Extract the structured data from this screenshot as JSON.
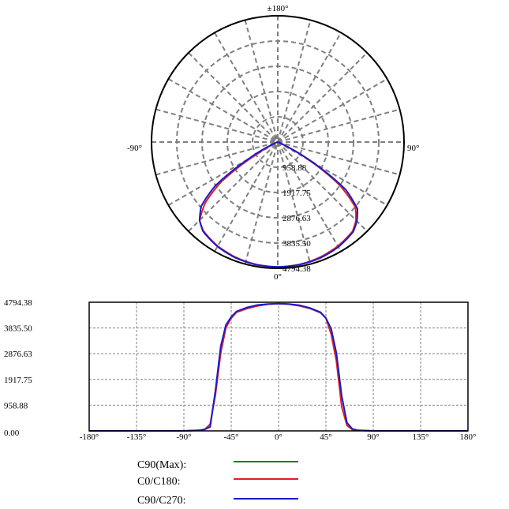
{
  "colors": {
    "c90_max": "#1a7f1a",
    "c0_c180": "#e02020",
    "c90_c270": "#1a1acc",
    "grid": "#808080",
    "frame": "#000000"
  },
  "chart_data": [
    {
      "type": "polar",
      "angle_labels": {
        "top": "±180°",
        "left": "-90°",
        "right": "90°",
        "bottom": "0°"
      },
      "radial_labels": [
        "958.88",
        "1917.75",
        "2876.63",
        "3835.50",
        "4794.38"
      ],
      "rmax": 4794.38,
      "grid": true,
      "series": [
        {
          "name": "C0/C180",
          "color_key": "c0_c180",
          "angles": [
            -180,
            -90,
            -75,
            -70,
            -65,
            -60,
            -55,
            -50,
            -45,
            -40,
            -30,
            -20,
            -10,
            0,
            10,
            20,
            30,
            40,
            45,
            50,
            55,
            60,
            65,
            70,
            75,
            90,
            180
          ],
          "values": [
            0,
            0,
            20,
            60,
            250,
            1350,
            2900,
            3850,
            4200,
            4420,
            4560,
            4660,
            4720,
            4740,
            4720,
            4660,
            4560,
            4400,
            4200,
            3600,
            2600,
            900,
            200,
            50,
            20,
            0,
            0
          ]
        },
        {
          "name": "C90/C270",
          "color_key": "c90_c270",
          "angles": [
            -180,
            -90,
            -75,
            -70,
            -65,
            -60,
            -55,
            -50,
            -45,
            -40,
            -30,
            -20,
            -10,
            0,
            10,
            20,
            30,
            40,
            45,
            50,
            55,
            60,
            65,
            70,
            75,
            90,
            180
          ],
          "values": [
            0,
            0,
            20,
            60,
            150,
            1500,
            3150,
            3950,
            4250,
            4450,
            4600,
            4690,
            4730,
            4740,
            4730,
            4680,
            4580,
            4420,
            4200,
            3800,
            2900,
            1300,
            300,
            80,
            20,
            0,
            0
          ]
        }
      ]
    },
    {
      "type": "line",
      "x_tick_labels": [
        "-180°",
        "-135°",
        "-90°",
        "-45°",
        "0°",
        "45°",
        "90°",
        "135°",
        "180°"
      ],
      "x_ticks": [
        -180,
        -135,
        -90,
        -45,
        0,
        45,
        90,
        135,
        180
      ],
      "y_tick_labels": [
        "0.00",
        "958.88",
        "1917.75",
        "2876.63",
        "3835.50",
        "4794.38"
      ],
      "y_ticks": [
        0,
        958.88,
        1917.75,
        2876.63,
        3835.5,
        4794.38
      ],
      "xlim": [
        -180,
        180
      ],
      "ylim": [
        0,
        4794.38
      ],
      "grid": true,
      "series": [
        {
          "name": "C0/C180",
          "color_key": "c0_c180",
          "x": [
            -180,
            -90,
            -75,
            -70,
            -65,
            -60,
            -55,
            -50,
            -45,
            -40,
            -30,
            -20,
            -10,
            0,
            10,
            20,
            30,
            40,
            45,
            50,
            55,
            60,
            65,
            70,
            75,
            90,
            180
          ],
          "y": [
            0,
            0,
            20,
            60,
            250,
            1350,
            2900,
            3850,
            4200,
            4420,
            4560,
            4660,
            4720,
            4740,
            4720,
            4660,
            4560,
            4400,
            4200,
            3600,
            2600,
            900,
            200,
            50,
            20,
            0,
            0
          ]
        },
        {
          "name": "C90/C270",
          "color_key": "c90_c270",
          "x": [
            -180,
            -90,
            -75,
            -70,
            -65,
            -60,
            -55,
            -50,
            -45,
            -40,
            -30,
            -20,
            -10,
            0,
            10,
            20,
            30,
            40,
            45,
            50,
            55,
            60,
            65,
            70,
            75,
            90,
            180
          ],
          "y": [
            0,
            0,
            20,
            60,
            150,
            1500,
            3150,
            3950,
            4250,
            4450,
            4600,
            4690,
            4730,
            4740,
            4730,
            4680,
            4580,
            4420,
            4200,
            3800,
            2900,
            1300,
            300,
            80,
            20,
            0,
            0
          ]
        }
      ]
    }
  ],
  "legend": {
    "items": [
      {
        "label": "C90(Max):",
        "color_key": "c90_max"
      },
      {
        "label": "C0/C180:",
        "color_key": "c0_c180"
      },
      {
        "label": "C90/C270:",
        "color_key": "c90_c270"
      }
    ]
  }
}
